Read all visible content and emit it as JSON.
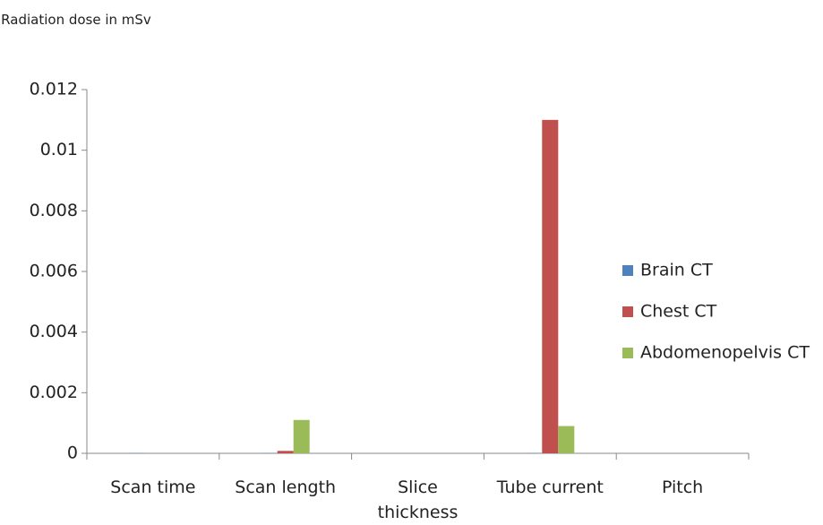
{
  "chart_data": {
    "type": "bar",
    "y_label": "Radiation dose in mSv",
    "categories": [
      "Scan time",
      "Scan length",
      "Slice thickness",
      "Tube current",
      "Pitch"
    ],
    "series": [
      {
        "name": "Brain CT",
        "color": "#4f81bd",
        "values": [
          1e-05,
          1e-05,
          0,
          1e-05,
          0
        ]
      },
      {
        "name": "Chest CT",
        "color": "#c0504d",
        "values": [
          0,
          8e-05,
          0,
          0.011,
          0
        ]
      },
      {
        "name": "Abdomenopelvis CT",
        "color": "#9bbb59",
        "values": [
          0,
          0.0011,
          0,
          0.0009,
          0
        ]
      }
    ],
    "ylim": [
      0,
      0.012
    ],
    "yticks": [
      0,
      0.002,
      0.004,
      0.006,
      0.008,
      0.01,
      0.012
    ],
    "grid": false,
    "legend": "right"
  }
}
